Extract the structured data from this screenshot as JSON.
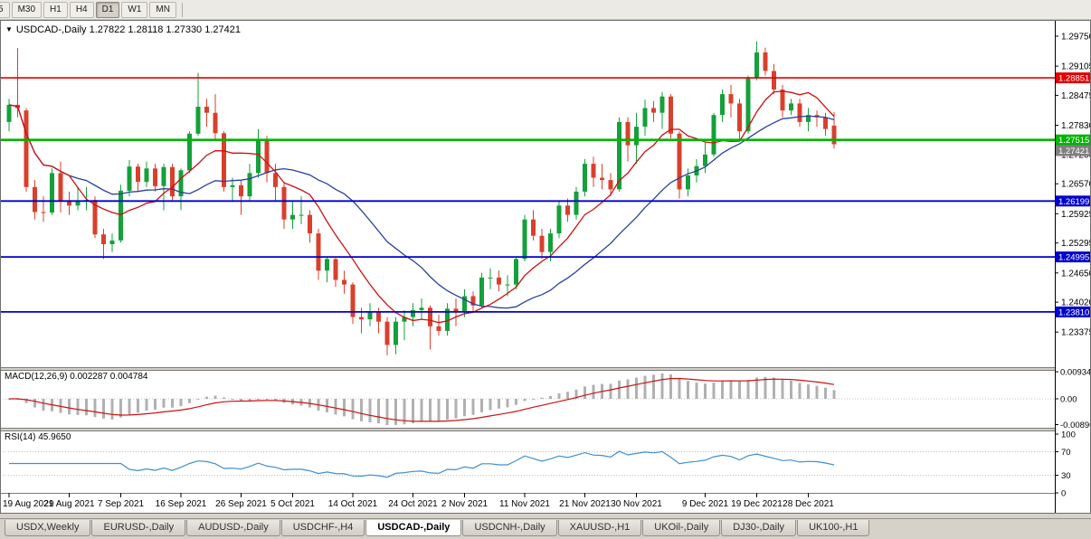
{
  "toolbar": {
    "timeframes": [
      {
        "label": "5",
        "active": false
      },
      {
        "label": "M30",
        "active": false
      },
      {
        "label": "H1",
        "active": false
      },
      {
        "label": "H4",
        "active": false
      },
      {
        "label": "D1",
        "active": true
      },
      {
        "label": "W1",
        "active": false
      },
      {
        "label": "MN",
        "active": false
      }
    ]
  },
  "chart": {
    "symbol": "USDCAD-",
    "period": "Daily",
    "title_line": "USDCAD-,Daily 1.27822 1.28118 1.27330 1.27421",
    "open": "1.27822",
    "high": "1.28118",
    "low": "1.27330",
    "close": "1.27421"
  },
  "price_axis": {
    "labels": [
      "1.29750",
      "1.29105",
      "1.28475",
      "1.27830",
      "1.27200",
      "1.26570",
      "1.25925",
      "1.25295",
      "1.24650",
      "1.24020",
      "1.23375"
    ]
  },
  "levels": [
    {
      "label": "1.28851",
      "price": 1.28851,
      "color": "#e00000",
      "width": 1.6,
      "line": true,
      "name": "resistance-line"
    },
    {
      "label": "1.27515",
      "price": 1.27515,
      "color": "#00b400",
      "width": 2.6,
      "line": true,
      "name": "support-line-green"
    },
    {
      "label": "1.27421",
      "price": 1.27421,
      "color": "#7f7f7f",
      "width": 1,
      "line": false,
      "name": "bid-price"
    },
    {
      "label": "1.26199",
      "price": 1.26199,
      "color": "#0000cd",
      "width": 1.8,
      "line": true,
      "name": "support-line-1"
    },
    {
      "label": "1.24995",
      "price": 1.24995,
      "color": "#0000cd",
      "width": 1.8,
      "line": true,
      "name": "support-line-2"
    },
    {
      "label": "1.23810",
      "price": 1.2381,
      "color": "#0000cd",
      "width": 1.8,
      "line": true,
      "name": "support-line-3"
    }
  ],
  "macd": {
    "label_line": "MACD(12,26,9) 0.002287 0.004784",
    "name": "MACD(12,26,9)",
    "value": "0.002287",
    "signal": "0.004784",
    "axis": [
      "0.00934",
      "0.00",
      "-0.00890"
    ]
  },
  "rsi": {
    "label_line": "RSI(14) 45.9650",
    "name": "RSI(14)",
    "value": "45.9650",
    "axis": [
      "100",
      "70",
      "30",
      "0"
    ],
    "levels": [
      70,
      30
    ]
  },
  "date_axis": [
    {
      "label": "19 Aug 2021",
      "bar": 0
    },
    {
      "label": "29 Aug 2021",
      "bar": 7
    },
    {
      "label": "7 Sep 2021",
      "bar": 13
    },
    {
      "label": "16 Sep 2021",
      "bar": 20
    },
    {
      "label": "26 Sep 2021",
      "bar": 27
    },
    {
      "label": "5 Oct 2021",
      "bar": 33
    },
    {
      "label": "14 Oct 2021",
      "bar": 40
    },
    {
      "label": "24 Oct 2021",
      "bar": 47
    },
    {
      "label": "2 Nov 2021",
      "bar": 53
    },
    {
      "label": "11 Nov 2021",
      "bar": 60
    },
    {
      "label": "21 Nov 2021",
      "bar": 67
    },
    {
      "label": "30 Nov 2021",
      "bar": 73
    },
    {
      "label": "9 Dec 2021",
      "bar": 81
    },
    {
      "label": "19 Dec 2021",
      "bar": 87
    },
    {
      "label": "28 Dec 2021",
      "bar": 93
    }
  ],
  "tabs": [
    {
      "label": "USDX,Weekly",
      "active": false
    },
    {
      "label": "EURUSD-,Daily",
      "active": false
    },
    {
      "label": "AUDUSD-,Daily",
      "active": false
    },
    {
      "label": "USDCHF-,H4",
      "active": false
    },
    {
      "label": "USDCAD-,Daily",
      "active": true
    },
    {
      "label": "USDCNH-,Daily",
      "active": false
    },
    {
      "label": "XAUUSD-,H1",
      "active": false
    },
    {
      "label": "UKOil-,Daily",
      "active": false
    },
    {
      "label": "DJ30-,Daily",
      "active": false
    },
    {
      "label": "UK100-,H1",
      "active": false
    }
  ],
  "chart_data": {
    "type": "candlestick",
    "symbol": "USDCAD-",
    "timeframe": "Daily",
    "ylim": [
      1.2262,
      1.301
    ],
    "colors": {
      "up": "#14a03a",
      "down": "#d8402c",
      "ma_fast": "#cc1111",
      "ma_slow": "#2b3f9e",
      "macd_hist": "#b0b0b0",
      "macd_signal": "#cc1111",
      "rsi": "#3f8fd2"
    },
    "ma_periods": {
      "fast": 8,
      "slow": 20
    },
    "indicators": {
      "macd": {
        "fast": 12,
        "slow": 26,
        "signal": 9
      },
      "rsi": {
        "period": 14
      }
    },
    "candles": [
      [
        1.279,
        1.284,
        1.277,
        1.2827
      ],
      [
        1.2827,
        1.2949,
        1.28,
        1.282
      ],
      [
        1.2815,
        1.282,
        1.264,
        1.265
      ],
      [
        1.265,
        1.2665,
        1.258,
        1.2596
      ],
      [
        1.2596,
        1.263,
        1.2575,
        1.2595
      ],
      [
        1.2595,
        1.269,
        1.259,
        1.268
      ],
      [
        1.268,
        1.2705,
        1.2595,
        1.262
      ],
      [
        1.262,
        1.264,
        1.259,
        1.261
      ],
      [
        1.261,
        1.265,
        1.26,
        1.262
      ],
      [
        1.262,
        1.265,
        1.26,
        1.2622
      ],
      [
        1.2622,
        1.263,
        1.254,
        1.2548
      ],
      [
        1.2548,
        1.256,
        1.2495,
        1.2527
      ],
      [
        1.2527,
        1.255,
        1.251,
        1.2535
      ],
      [
        1.2535,
        1.2655,
        1.253,
        1.2642
      ],
      [
        1.2642,
        1.2708,
        1.263,
        1.2694
      ],
      [
        1.2694,
        1.27,
        1.264,
        1.2661
      ],
      [
        1.2661,
        1.2705,
        1.265,
        1.269
      ],
      [
        1.269,
        1.27,
        1.264,
        1.2652
      ],
      [
        1.2652,
        1.27,
        1.26,
        1.2693
      ],
      [
        1.2693,
        1.27,
        1.262,
        1.263
      ],
      [
        1.263,
        1.269,
        1.26,
        1.2686
      ],
      [
        1.2686,
        1.277,
        1.268,
        1.2765
      ],
      [
        1.2765,
        1.2896,
        1.276,
        1.2823
      ],
      [
        1.2823,
        1.284,
        1.278,
        1.281
      ],
      [
        1.281,
        1.285,
        1.275,
        1.2766
      ],
      [
        1.2766,
        1.277,
        1.264,
        1.265
      ],
      [
        1.265,
        1.267,
        1.262,
        1.2654
      ],
      [
        1.2654,
        1.2665,
        1.259,
        1.263
      ],
      [
        1.263,
        1.27,
        1.262,
        1.268
      ],
      [
        1.268,
        1.2775,
        1.267,
        1.275
      ],
      [
        1.275,
        1.276,
        1.266,
        1.268
      ],
      [
        1.268,
        1.27,
        1.262,
        1.265
      ],
      [
        1.265,
        1.266,
        1.256,
        1.258
      ],
      [
        1.258,
        1.262,
        1.256,
        1.259
      ],
      [
        1.259,
        1.263,
        1.257,
        1.259
      ],
      [
        1.259,
        1.26,
        1.253,
        1.255
      ],
      [
        1.255,
        1.256,
        1.245,
        1.247
      ],
      [
        1.247,
        1.25,
        1.2445,
        1.2495
      ],
      [
        1.2495,
        1.25,
        1.2435,
        1.245
      ],
      [
        1.245,
        1.247,
        1.242,
        1.244
      ],
      [
        1.244,
        1.2445,
        1.2355,
        1.237
      ],
      [
        1.237,
        1.239,
        1.2335,
        1.2365
      ],
      [
        1.2365,
        1.24,
        1.235,
        1.238
      ],
      [
        1.238,
        1.239,
        1.2335,
        1.236
      ],
      [
        1.236,
        1.237,
        1.2288,
        1.231
      ],
      [
        1.231,
        1.237,
        1.229,
        1.236
      ],
      [
        1.236,
        1.2385,
        1.232,
        1.237
      ],
      [
        1.237,
        1.24,
        1.235,
        1.2385
      ],
      [
        1.2385,
        1.241,
        1.2365,
        1.239
      ],
      [
        1.239,
        1.2395,
        1.23,
        1.235
      ],
      [
        1.235,
        1.2375,
        1.233,
        1.234
      ],
      [
        1.234,
        1.24,
        1.233,
        1.2388
      ],
      [
        1.2388,
        1.241,
        1.235,
        1.238
      ],
      [
        1.238,
        1.243,
        1.237,
        1.2415
      ],
      [
        1.2415,
        1.2425,
        1.238,
        1.2395
      ],
      [
        1.2395,
        1.2465,
        1.239,
        1.2455
      ],
      [
        1.2455,
        1.2475,
        1.243,
        1.2455
      ],
      [
        1.2455,
        1.247,
        1.2425,
        1.244
      ],
      [
        1.244,
        1.246,
        1.2415,
        1.244
      ],
      [
        1.244,
        1.25,
        1.243,
        1.2495
      ],
      [
        1.2495,
        1.259,
        1.249,
        1.258
      ],
      [
        1.258,
        1.26,
        1.2535,
        1.2545
      ],
      [
        1.2545,
        1.256,
        1.2495,
        1.251
      ],
      [
        1.251,
        1.256,
        1.249,
        1.255
      ],
      [
        1.255,
        1.262,
        1.254,
        1.261
      ],
      [
        1.261,
        1.2625,
        1.2575,
        1.259
      ],
      [
        1.259,
        1.265,
        1.258,
        1.264
      ],
      [
        1.264,
        1.271,
        1.263,
        1.27
      ],
      [
        1.27,
        1.2715,
        1.265,
        1.267
      ],
      [
        1.267,
        1.27,
        1.2645,
        1.2665
      ],
      [
        1.2665,
        1.268,
        1.263,
        1.2645
      ],
      [
        1.2645,
        1.28,
        1.264,
        1.279
      ],
      [
        1.279,
        1.28,
        1.2705,
        1.274
      ],
      [
        1.274,
        1.281,
        1.27,
        1.278
      ],
      [
        1.278,
        1.2838,
        1.276,
        1.282
      ],
      [
        1.282,
        1.2835,
        1.279,
        1.281
      ],
      [
        1.281,
        1.2855,
        1.2775,
        1.2845
      ],
      [
        1.2845,
        1.285,
        1.2755,
        1.2765
      ],
      [
        1.2765,
        1.277,
        1.2625,
        1.2645
      ],
      [
        1.2645,
        1.269,
        1.263,
        1.2675
      ],
      [
        1.2675,
        1.271,
        1.266,
        1.2695
      ],
      [
        1.2695,
        1.2745,
        1.268,
        1.272
      ],
      [
        1.272,
        1.281,
        1.2715,
        1.2805
      ],
      [
        1.2805,
        1.286,
        1.279,
        1.285
      ],
      [
        1.285,
        1.287,
        1.28,
        1.283
      ],
      [
        1.283,
        1.284,
        1.275,
        1.277
      ],
      [
        1.277,
        1.289,
        1.2765,
        1.2885
      ],
      [
        1.2885,
        1.2964,
        1.288,
        1.294
      ],
      [
        1.294,
        1.295,
        1.289,
        1.29
      ],
      [
        1.29,
        1.2915,
        1.285,
        1.286
      ],
      [
        1.286,
        1.287,
        1.28,
        1.2815
      ],
      [
        1.2815,
        1.284,
        1.2805,
        1.283
      ],
      [
        1.283,
        1.284,
        1.278,
        1.279
      ],
      [
        1.279,
        1.282,
        1.277,
        1.2805
      ],
      [
        1.2805,
        1.2815,
        1.278,
        1.28
      ],
      [
        1.28,
        1.281,
        1.276,
        1.2775
      ],
      [
        1.27822,
        1.28118,
        1.2733,
        1.27421
      ]
    ]
  }
}
